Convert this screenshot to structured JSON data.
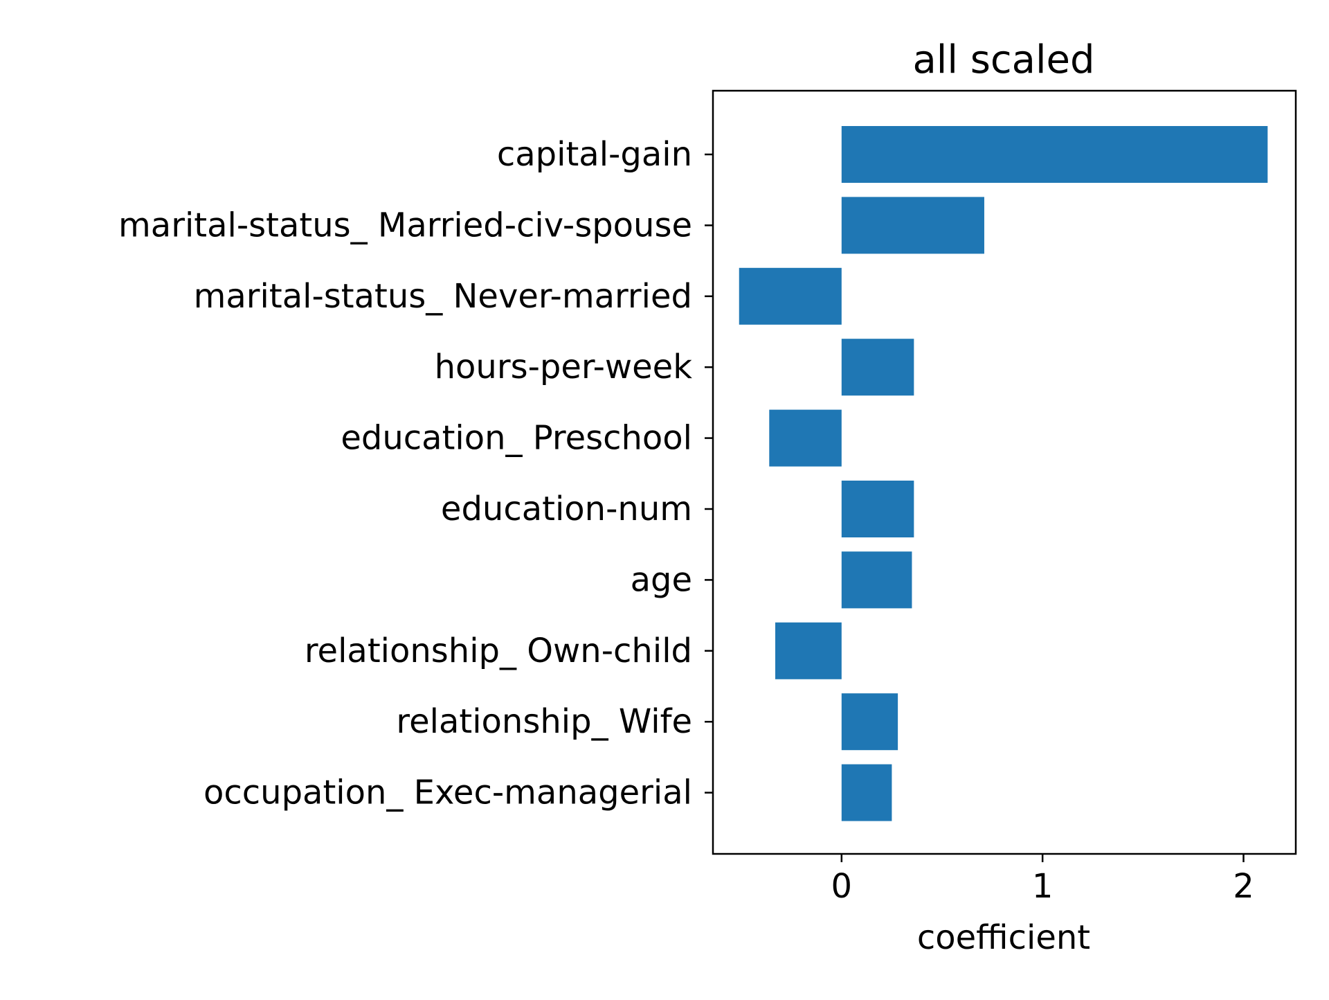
{
  "chart_data": {
    "type": "bar",
    "orientation": "horizontal",
    "title": "all scaled",
    "xlabel": "coefficient",
    "ylabel": "",
    "categories": [
      "capital-gain",
      "marital-status_ Married-civ-spouse",
      "marital-status_ Never-married",
      "hours-per-week",
      "education_ Preschool",
      "education-num",
      "age",
      "relationship_ Own-child",
      "relationship_ Wife",
      "occupation_ Exec-managerial"
    ],
    "values": [
      2.12,
      0.71,
      -0.51,
      0.36,
      -0.36,
      0.36,
      0.35,
      -0.33,
      0.28,
      0.25
    ],
    "xlim": [
      -0.64,
      2.26
    ],
    "xticks": [
      0,
      1,
      2
    ],
    "xtick_labels": [
      "0",
      "1",
      "2"
    ],
    "grid": false,
    "legend": "none",
    "bar_color": "#1f77b4"
  }
}
